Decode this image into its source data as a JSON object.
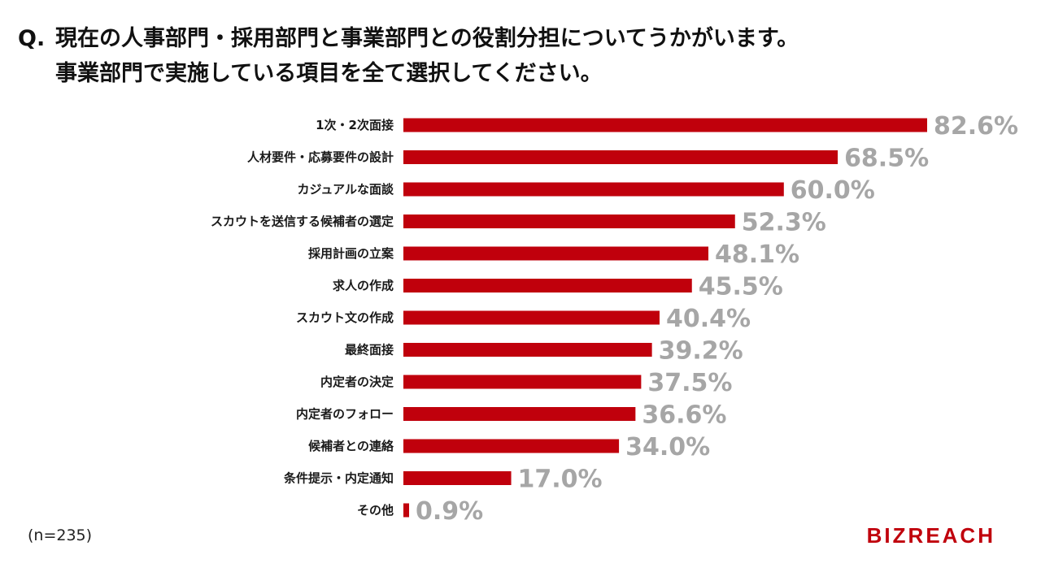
{
  "question": {
    "prefix": "Q.",
    "line1": "現在の人事部門・採用部門と事業部門との役割分担についてうかがいます。",
    "line2": "事業部門で実施している項目を全て選択してください。"
  },
  "sample_size": "(n=235)",
  "brand": {
    "name": "BIZREACH"
  },
  "colors": {
    "bar": "#c0000c",
    "value_label": "#a6a6a6"
  },
  "chart_data": {
    "type": "bar",
    "orientation": "horizontal",
    "unit": "%",
    "xlim": [
      0,
      82.6
    ],
    "categories": [
      "1次・2次面接",
      "人材要件・応募要件の設計",
      "カジュアルな面談",
      "スカウトを送信する候補者の選定",
      "採用計画の立案",
      "求人の作成",
      "スカウト文の作成",
      "最終面接",
      "内定者の決定",
      "内定者のフォロー",
      "候補者との連絡",
      "条件提示・内定通知",
      "その他"
    ],
    "values": [
      82.6,
      68.5,
      60.0,
      52.3,
      48.1,
      45.5,
      40.4,
      39.2,
      37.5,
      36.6,
      34.0,
      17.0,
      0.9
    ],
    "value_labels": [
      "82.6%",
      "68.5%",
      "60.0%",
      "52.3%",
      "48.1%",
      "45.5%",
      "40.4%",
      "39.2%",
      "37.5%",
      "36.6%",
      "34.0%",
      "17.0%",
      "0.9%"
    ]
  }
}
